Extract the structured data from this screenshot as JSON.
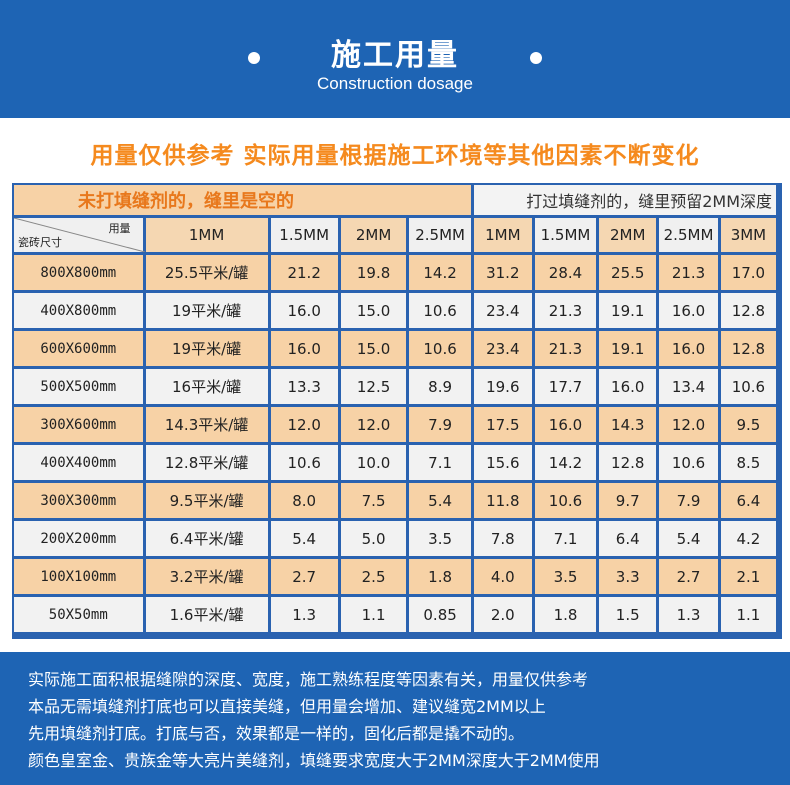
{
  "header": {
    "title": "施工用量",
    "subtitle": "Construction dosage"
  },
  "notice": "用量仅供参考  实际用量根据施工环境等其他因素不断变化",
  "table": {
    "group_left": "未打填缝剂的，缝里是空的",
    "group_right": "打过填缝剂的，缝里预留2MM深度",
    "corner_top": "用量",
    "corner_bottom": "瓷砖尺寸",
    "columns": [
      "1MM",
      "1.5MM",
      "2MM",
      "2.5MM",
      "1MM",
      "1.5MM",
      "2MM",
      "2.5MM",
      "3MM"
    ],
    "rows": [
      [
        "800X800mm",
        "25.5平米/罐",
        "21.2",
        "19.8",
        "14.2",
        "31.2",
        "28.4",
        "25.5",
        "21.3",
        "17.0"
      ],
      [
        "400X800mm",
        "19平米/罐",
        "16.0",
        "15.0",
        "10.6",
        "23.4",
        "21.3",
        "19.1",
        "16.0",
        "12.8"
      ],
      [
        "600X600mm",
        "19平米/罐",
        "16.0",
        "15.0",
        "10.6",
        "23.4",
        "21.3",
        "19.1",
        "16.0",
        "12.8"
      ],
      [
        "500X500mm",
        "16平米/罐",
        "13.3",
        "12.5",
        "8.9",
        "19.6",
        "17.7",
        "16.0",
        "13.4",
        "10.6"
      ],
      [
        "300X600mm",
        "14.3平米/罐",
        "12.0",
        "12.0",
        "7.9",
        "17.5",
        "16.0",
        "14.3",
        "12.0",
        "9.5"
      ],
      [
        "400X400mm",
        "12.8平米/罐",
        "10.6",
        "10.0",
        "7.1",
        "15.6",
        "14.2",
        "12.8",
        "10.6",
        "8.5"
      ],
      [
        "300X300mm",
        "9.5平米/罐",
        "8.0",
        "7.5",
        "5.4",
        "11.8",
        "10.6",
        "9.7",
        "7.9",
        "6.4"
      ],
      [
        "200X200mm",
        "6.4平米/罐",
        "5.4",
        "5.0",
        "3.5",
        "7.8",
        "7.1",
        "6.4",
        "5.4",
        "4.2"
      ],
      [
        "100X100mm",
        "3.2平米/罐",
        "2.7",
        "2.5",
        "1.8",
        "4.0",
        "3.5",
        "3.3",
        "2.7",
        "2.1"
      ],
      [
        "50X50mm",
        "1.6平米/罐",
        "1.3",
        "1.1",
        "0.85",
        "2.0",
        "1.8",
        "1.5",
        "1.3",
        "1.1"
      ]
    ]
  },
  "footer": {
    "lines": [
      "实际施工面积根据缝隙的深度、宽度，施工熟练程度等因素有关，用量仅供参考",
      "本品无需填缝剂打底也可以直接美缝，但用量会增加、建议缝宽2MM以上",
      "先用填缝剂打底。打底与否，效果都是一样的，固化后都是撬不动的。",
      "颜色皇室金、贵族金等大亮片美缝剂，填缝要求宽度大于2MM深度大于2MM使用"
    ]
  }
}
